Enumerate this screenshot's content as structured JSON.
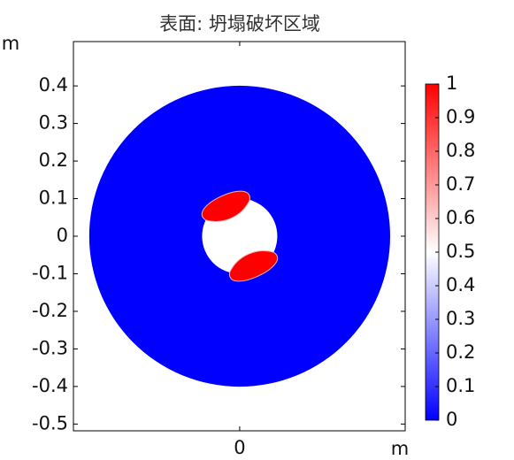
{
  "chart_data": {
    "type": "surface",
    "title": "表面: 坍塌破坏区域",
    "x_unit": "m",
    "y_unit": "m",
    "xlim": [
      -0.442,
      0.44
    ],
    "ylim": [
      -0.518,
      0.518
    ],
    "xticks": [
      0
    ],
    "yticks": [
      0.4,
      0.3,
      0.2,
      0.1,
      0,
      -0.1,
      -0.2,
      -0.3,
      -0.4,
      -0.5
    ],
    "surface": {
      "outer_radius": 0.4,
      "inner_radius": 0.1,
      "background_value": 0,
      "failure_value": 1
    },
    "colorbar": {
      "lim": [
        0,
        1
      ],
      "ticks": [
        1,
        0.9,
        0.8,
        0.7,
        0.6,
        0.5,
        0.4,
        0.3,
        0.2,
        0.1,
        0
      ],
      "colors": [
        "#0000ff",
        "#ffffff",
        "#ff0000"
      ]
    }
  }
}
